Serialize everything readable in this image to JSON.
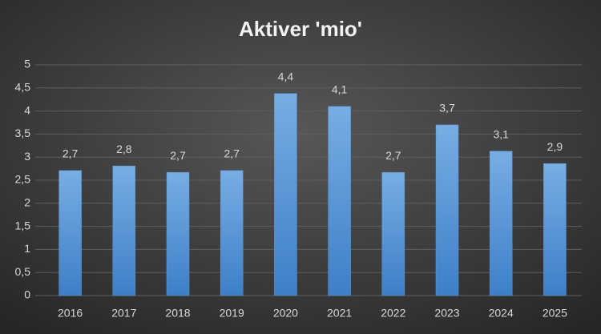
{
  "chart_data": {
    "type": "bar",
    "title": "Aktiver 'mio'",
    "categories": [
      "2016",
      "2017",
      "2018",
      "2019",
      "2020",
      "2021",
      "2022",
      "2023",
      "2024",
      "2025"
    ],
    "values": [
      2.71,
      2.81,
      2.67,
      2.71,
      4.38,
      4.1,
      2.67,
      3.7,
      3.13,
      2.86
    ],
    "value_labels": [
      "2,7",
      "2,8",
      "2,7",
      "2,7",
      "4,4",
      "4,1",
      "2,7",
      "3,7",
      "3,1",
      "2,9"
    ],
    "color": "#5b9bd5",
    "ylim": [
      0,
      5
    ],
    "yticks": [
      0,
      {
        "value": 0.5,
        "label": "0,5"
      },
      1,
      {
        "value": 1.5,
        "label": "1,5"
      },
      2,
      {
        "value": 2.5,
        "label": "2,5"
      },
      3,
      {
        "value": 3.5,
        "label": "3,5"
      },
      4,
      {
        "value": 4.5,
        "label": "4,5"
      },
      5
    ],
    "grid": true
  }
}
